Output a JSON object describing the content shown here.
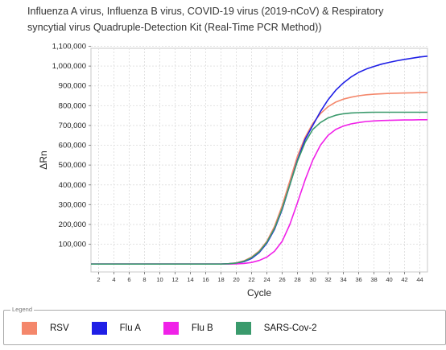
{
  "chart_data": {
    "type": "line",
    "title_lines": [
      "Influenza A virus, Influenza B virus, COVID-19 virus (2019-nCoV) & Respiratory",
      "syncytial virus Quadruple-Detection Kit (Real-Time PCR Method))"
    ],
    "xlabel": "Cycle",
    "ylabel": "ΔRn",
    "xlim": [
      1,
      45
    ],
    "ylim": [
      -40000,
      1090000
    ],
    "x_ticks": [
      2,
      4,
      6,
      8,
      10,
      12,
      14,
      16,
      18,
      20,
      22,
      24,
      26,
      28,
      30,
      32,
      34,
      36,
      38,
      40,
      42,
      44
    ],
    "y_ticks": [
      100000,
      200000,
      300000,
      400000,
      500000,
      600000,
      700000,
      800000,
      900000,
      1000000,
      1100000
    ],
    "y_tick_labels": [
      "100,000",
      "200,000",
      "300,000",
      "400,000",
      "500,000",
      "600,000",
      "700,000",
      "800,000",
      "900,000",
      "1,000,000",
      "1,100,000"
    ],
    "grid": true,
    "x": [
      1,
      10,
      18,
      19,
      20,
      21,
      22,
      23,
      24,
      25,
      26,
      27,
      28,
      29,
      30,
      31,
      32,
      33,
      34,
      35,
      36,
      37,
      38,
      39,
      40,
      41,
      42,
      43,
      44,
      45
    ],
    "series": [
      {
        "name": "RSV",
        "color": "#f4876b",
        "values": [
          0,
          0,
          0,
          2000,
          6000,
          16000,
          35000,
          66000,
          115000,
          190000,
          295000,
          420000,
          545000,
          640000,
          710000,
          760000,
          795000,
          818000,
          833000,
          843000,
          850000,
          855000,
          858000,
          860000,
          862000,
          863000,
          864000,
          865000,
          866000,
          867000
        ]
      },
      {
        "name": "Flu A",
        "color": "#1f1fe6",
        "values": [
          0,
          0,
          0,
          1500,
          4500,
          12000,
          28000,
          58000,
          105000,
          175000,
          275000,
          400000,
          525000,
          630000,
          700000,
          770000,
          830000,
          878000,
          915000,
          945000,
          968000,
          985000,
          998000,
          1010000,
          1019000,
          1027000,
          1034000,
          1040000,
          1046000,
          1050000
        ]
      },
      {
        "name": "Flu B",
        "color": "#f021e8",
        "values": [
          0,
          0,
          0,
          0,
          1000,
          3000,
          8000,
          18000,
          35000,
          65000,
          115000,
          200000,
          310000,
          425000,
          525000,
          600000,
          650000,
          680000,
          697000,
          708000,
          715000,
          720000,
          723000,
          725000,
          726000,
          727000,
          728000,
          728000,
          729000,
          729000
        ]
      },
      {
        "name": "SARS-Cov-2",
        "color": "#3a9a6c",
        "values": [
          0,
          0,
          0,
          1500,
          5000,
          14000,
          32000,
          62000,
          110000,
          180000,
          280000,
          400000,
          520000,
          615000,
          680000,
          715000,
          738000,
          752000,
          759000,
          763000,
          765000,
          766000,
          767000,
          767000,
          767000,
          767000,
          767000,
          767000,
          767000,
          767000
        ]
      }
    ]
  },
  "legend": {
    "caption": "Legend",
    "items": [
      {
        "label": "RSV",
        "color": "#f4876b"
      },
      {
        "label": "Flu A",
        "color": "#1f1fe6"
      },
      {
        "label": "Flu B",
        "color": "#f021e8"
      },
      {
        "label": "SARS-Cov-2",
        "color": "#3a9a6c"
      }
    ]
  }
}
